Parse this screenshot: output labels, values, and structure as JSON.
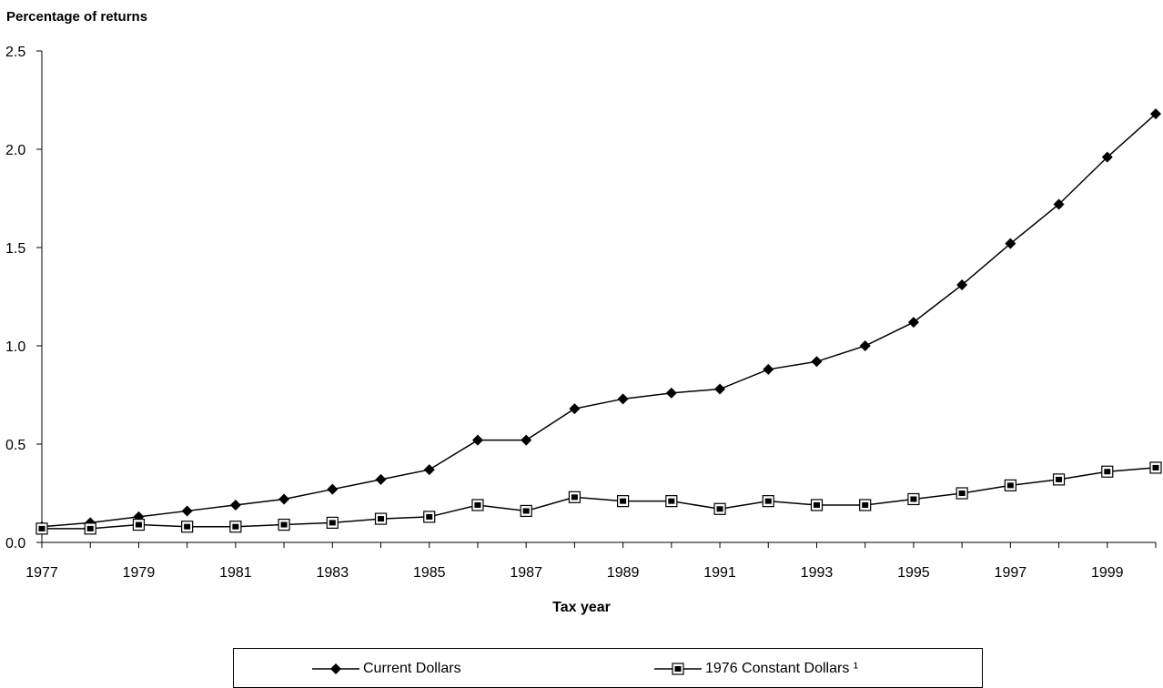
{
  "chart_data": {
    "type": "line",
    "ylabel": "Percentage of returns",
    "xlabel": "Tax year",
    "ylim": [
      0,
      2.5
    ],
    "xlim": [
      1977,
      2000
    ],
    "yticks": [
      "0.0",
      "0.5",
      "1.0",
      "1.5",
      "2.0",
      "2.5"
    ],
    "xticks": [
      "1977",
      "1979",
      "1981",
      "1983",
      "1985",
      "1987",
      "1989",
      "1991",
      "1993",
      "1995",
      "1997",
      "1999"
    ],
    "x": [
      1977,
      1978,
      1979,
      1980,
      1981,
      1982,
      1983,
      1984,
      1985,
      1986,
      1987,
      1988,
      1989,
      1990,
      1991,
      1992,
      1993,
      1994,
      1995,
      1996,
      1997,
      1998,
      1999,
      2000
    ],
    "series": [
      {
        "name": "Current Dollars",
        "marker": "diamond",
        "color": "#000000",
        "values": [
          0.08,
          0.1,
          0.13,
          0.16,
          0.19,
          0.22,
          0.27,
          0.32,
          0.37,
          0.52,
          0.52,
          0.68,
          0.73,
          0.76,
          0.78,
          0.88,
          0.92,
          1.0,
          1.12,
          1.31,
          1.52,
          1.72,
          1.96,
          2.18
        ]
      },
      {
        "name": "1976 Constant Dollars ¹",
        "marker": "square",
        "color": "#000000",
        "values": [
          0.07,
          0.07,
          0.09,
          0.08,
          0.08,
          0.09,
          0.1,
          0.12,
          0.13,
          0.19,
          0.16,
          0.23,
          0.21,
          0.21,
          0.17,
          0.21,
          0.19,
          0.19,
          0.22,
          0.25,
          0.29,
          0.32,
          0.36,
          0.38
        ]
      }
    ],
    "legend_position": "bottom"
  }
}
